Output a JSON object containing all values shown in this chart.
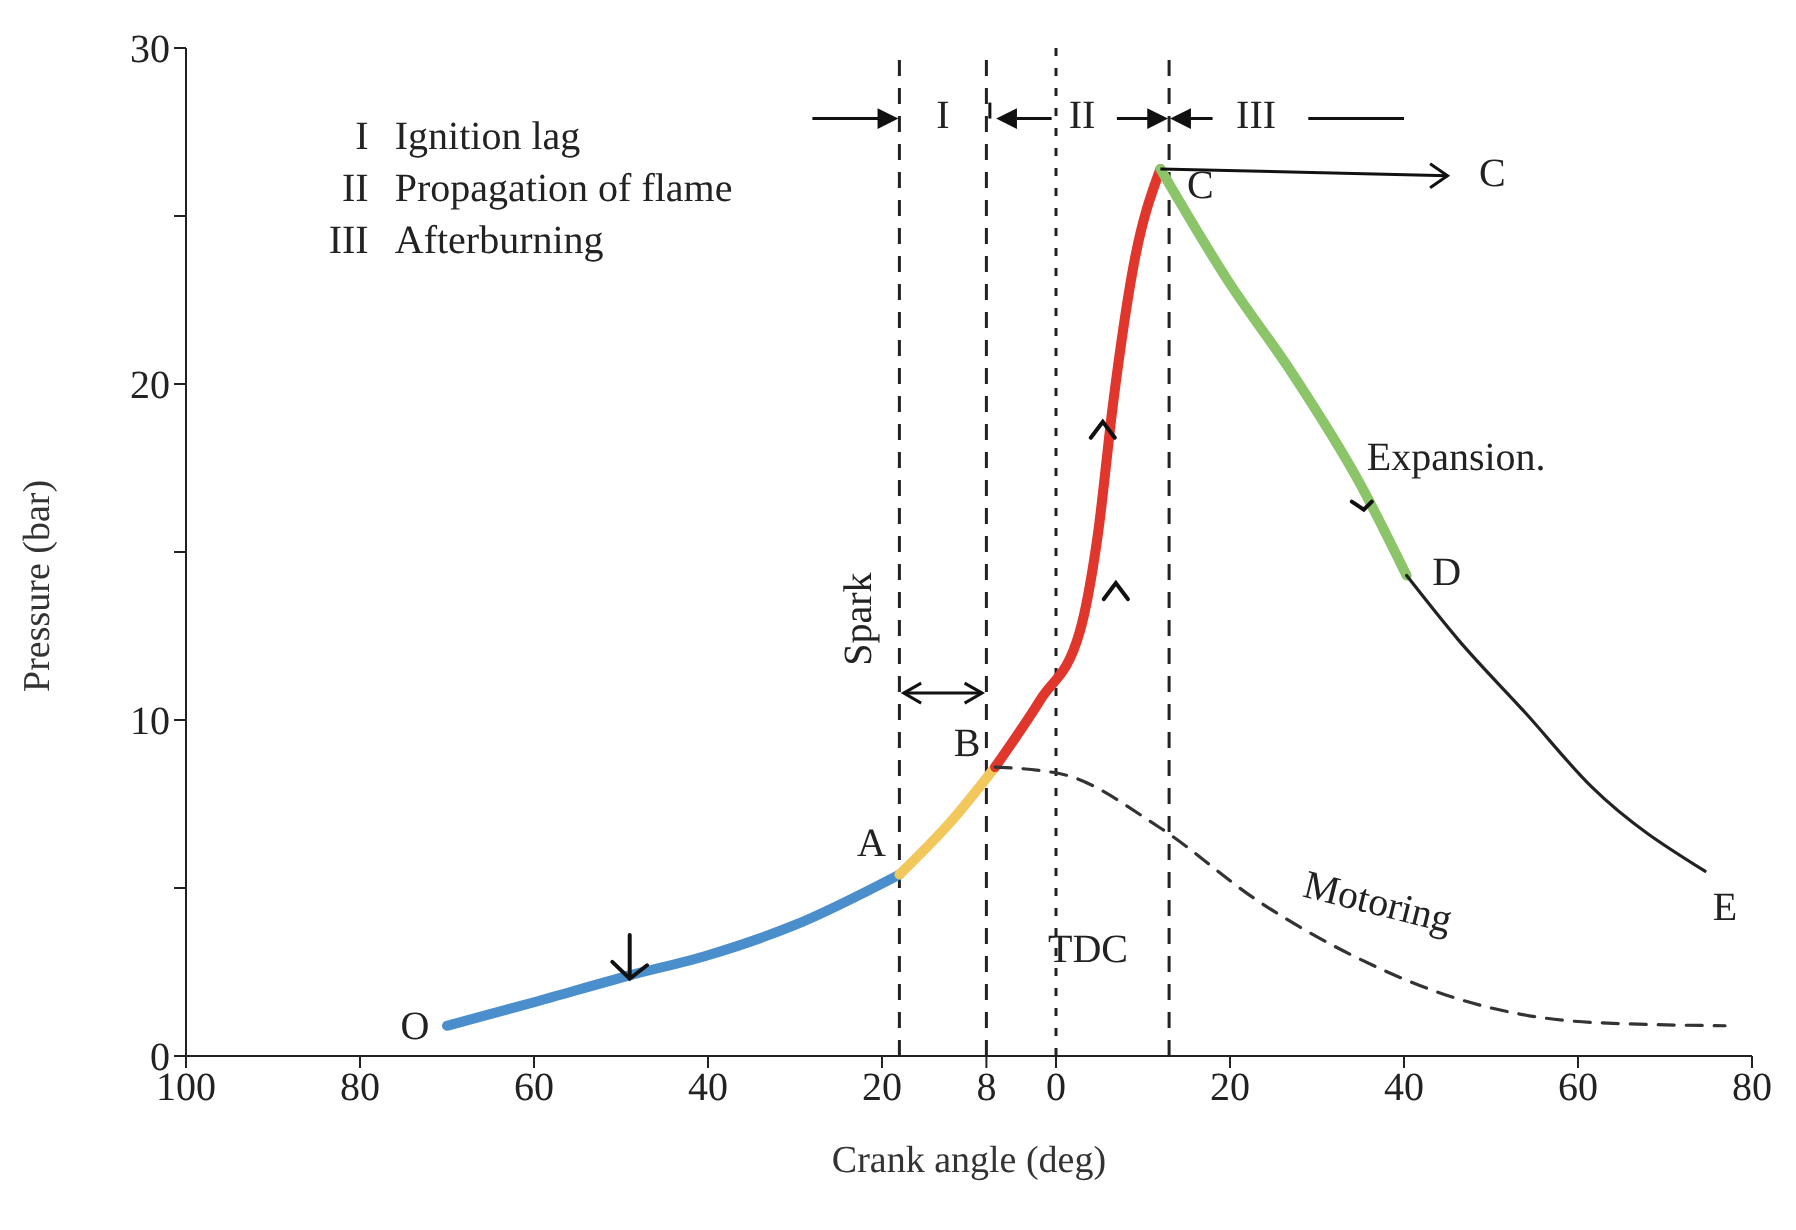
{
  "chart_data": {
    "type": "line",
    "xlabel": "Crank angle (deg)",
    "ylabel": "Pressure (bar)",
    "xlim": [
      -100,
      80
    ],
    "ylim": [
      0,
      30
    ],
    "xticks": [
      {
        "value": -100,
        "label": "100"
      },
      {
        "value": -80,
        "label": "80"
      },
      {
        "value": -60,
        "label": "60"
      },
      {
        "value": -40,
        "label": "40"
      },
      {
        "value": -20,
        "label": "20"
      },
      {
        "value": -8,
        "label": "8"
      },
      0,
      20,
      40,
      60,
      80
    ],
    "yticks": [
      0,
      {
        "value": 5,
        "label": null
      },
      10,
      {
        "value": 15,
        "label": null
      },
      20,
      {
        "value": 25,
        "label": null
      },
      30
    ],
    "marker": "none",
    "series": [
      {
        "color": "#4a8fcb",
        "line_style": "solid",
        "x": [
          -70,
          -60,
          -49,
          -40,
          -30,
          -18
        ],
        "values": [
          0.9,
          1.6,
          2.4,
          3.0,
          3.9,
          5.4
        ]
      },
      {
        "color": "#f2c75c",
        "line_style": "solid",
        "x": [
          -18,
          -12,
          -7
        ],
        "values": [
          5.4,
          7.0,
          8.6
        ]
      },
      {
        "color": "#e0362b",
        "line_style": "solid",
        "x": [
          -7,
          -1.8,
          2.7,
          4.8,
          6.6,
          8.9,
          12
        ],
        "values": [
          8.6,
          10.6,
          12.6,
          15.5,
          19.5,
          23.5,
          26.4
        ]
      },
      {
        "color": "#8cc46a",
        "line_style": "solid",
        "x": [
          12,
          19.7,
          27.2,
          34.8,
          40.3
        ],
        "values": [
          26.4,
          23.1,
          20.3,
          17.1,
          14.3
        ]
      },
      {
        "color": "#222222",
        "line_style": "solid",
        "x": [
          40.3,
          46.2,
          54,
          61.6,
          74.6
        ],
        "values": [
          14.3,
          12.4,
          10.2,
          8.0,
          5.5
        ]
      },
      {
        "name": "Motoring",
        "color": "#333333",
        "line_style": "dashed",
        "x": [
          -7,
          0.5,
          11.9,
          23.3,
          34.8,
          46.2,
          61.6,
          76.9
        ],
        "values": [
          8.6,
          8.4,
          6.8,
          4.6,
          2.9,
          1.7,
          1.0,
          0.9
        ]
      }
    ],
    "ref_lines": [
      {
        "axis": "x",
        "value": -18,
        "label": "Spark",
        "line_style": "dashed"
      },
      {
        "axis": "x",
        "value": -8,
        "line_style": "dashed"
      },
      {
        "axis": "x",
        "value": 0,
        "label": "TDC",
        "line_style": "dotted"
      },
      {
        "axis": "x",
        "value": 13,
        "line_style": "dashed"
      }
    ],
    "annotations": [
      "I   Ignition lag",
      "II   Propagation of flame",
      "III   Afterburning",
      "I",
      "II",
      "III",
      "Expansion.",
      {
        "text": "A",
        "x": -18,
        "y": 5.4
      },
      {
        "text": "B",
        "x": -7,
        "y": 8.6
      },
      {
        "text": "C",
        "x": 12,
        "y": 26.4
      },
      {
        "text": "D",
        "x": 40.3,
        "y": 14.3
      },
      {
        "text": "O",
        "x": -70,
        "y": 0.9
      },
      {
        "text": "E",
        "x": 74.6,
        "y": 5.5
      },
      {
        "text": "C",
        "x": 12,
        "y": 26.4
      }
    ]
  }
}
